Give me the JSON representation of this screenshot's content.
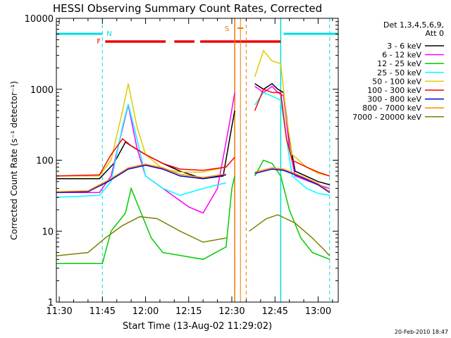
{
  "chart_data": {
    "type": "line",
    "title": "HESSI Observing Summary Count Rates, Corrected",
    "xlabel": "Start Time (13-Aug-02 11:29:02)",
    "ylabel": "Corrected Count Rate (s⁻¹ detector⁻¹)",
    "y_scale": "log",
    "ylim": [
      1,
      10000
    ],
    "xlim": [
      "11:29",
      "13:07"
    ],
    "x_ticks": [
      "11:30",
      "11:45",
      "12:00",
      "12:15",
      "12:30",
      "12:45",
      "13:00"
    ],
    "y_ticks": [
      "1",
      "10",
      "100",
      "1000",
      "10000"
    ],
    "legend_header": [
      "Det 1,3,4,5,6,9,",
      "Att 0"
    ],
    "legend_placement": "right",
    "footer_date": "20-Feb-2010 18:47",
    "flag_labels": {
      "night": "N",
      "flare": "F",
      "saa": "S"
    },
    "series": [
      {
        "name": "3 - 6 keV",
        "color": "#000000",
        "points": [
          [
            "11:29",
            55
          ],
          [
            "11:44",
            55
          ],
          [
            "11:49",
            90
          ],
          [
            "11:53",
            180
          ],
          [
            "11:56",
            150
          ],
          [
            "12:00",
            120
          ],
          [
            "12:06",
            90
          ],
          [
            "12:12",
            70
          ],
          [
            "12:20",
            55
          ],
          [
            "12:27",
            60
          ],
          [
            "12:30",
            300
          ],
          [
            "12:31",
            500
          ]
        ],
        "points2": [
          [
            "12:38",
            1200
          ],
          [
            "12:41",
            1000
          ],
          [
            "12:44",
            1200
          ],
          [
            "12:46",
            1000
          ],
          [
            "12:48",
            900
          ],
          [
            "12:50",
            200
          ],
          [
            "12:52",
            70
          ],
          [
            "13:00",
            50
          ],
          [
            "13:04",
            45
          ]
        ]
      },
      {
        "name": "6 - 12 keV",
        "color": "#ff00ff",
        "points": [
          [
            "11:29",
            35
          ],
          [
            "11:44",
            35
          ],
          [
            "11:48",
            60
          ],
          [
            "11:54",
            600
          ],
          [
            "11:57",
            150
          ],
          [
            "12:00",
            60
          ],
          [
            "12:08",
            35
          ],
          [
            "12:15",
            22
          ],
          [
            "12:20",
            18
          ],
          [
            "12:25",
            40
          ],
          [
            "12:29",
            300
          ],
          [
            "12:31",
            900
          ]
        ],
        "points2": [
          [
            "12:38",
            1100
          ],
          [
            "12:41",
            900
          ],
          [
            "12:44",
            1100
          ],
          [
            "12:46",
            900
          ],
          [
            "12:48",
            800
          ],
          [
            "12:50",
            150
          ],
          [
            "12:52",
            60
          ],
          [
            "13:00",
            45
          ],
          [
            "13:04",
            40
          ]
        ]
      },
      {
        "name": "12 - 25 keV",
        "color": "#00cc00",
        "points": [
          [
            "11:29",
            3.5
          ],
          [
            "11:45",
            3.5
          ],
          [
            "11:48",
            10
          ],
          [
            "11:53",
            18
          ],
          [
            "11:55",
            40
          ],
          [
            "11:58",
            20
          ],
          [
            "12:02",
            8
          ],
          [
            "12:06",
            5
          ],
          [
            "12:20",
            4
          ],
          [
            "12:28",
            6
          ],
          [
            "12:30",
            40
          ],
          [
            "12:31",
            60
          ]
        ],
        "points2": [
          [
            "12:38",
            60
          ],
          [
            "12:41",
            100
          ],
          [
            "12:44",
            90
          ],
          [
            "12:47",
            60
          ],
          [
            "12:50",
            20
          ],
          [
            "12:54",
            8
          ],
          [
            "12:58",
            5
          ],
          [
            "13:04",
            4
          ]
        ]
      },
      {
        "name": "25 - 50 keV",
        "color": "#00ffff",
        "points": [
          [
            "11:29",
            30
          ],
          [
            "11:44",
            32
          ],
          [
            "11:48",
            50
          ],
          [
            "11:52",
            300
          ],
          [
            "11:54",
            620
          ],
          [
            "11:57",
            200
          ],
          [
            "12:00",
            60
          ],
          [
            "12:06",
            40
          ],
          [
            "12:12",
            32
          ],
          [
            "12:20",
            40
          ],
          [
            "12:28",
            48
          ]
        ],
        "points2": [
          [
            "12:38",
            600
          ],
          [
            "12:41",
            900
          ],
          [
            "12:44",
            800
          ],
          [
            "12:47",
            700
          ],
          [
            "12:49",
            200
          ],
          [
            "12:51",
            60
          ],
          [
            "12:56",
            40
          ],
          [
            "13:00",
            34
          ],
          [
            "13:04",
            32
          ]
        ]
      },
      {
        "name": "50 - 100 keV",
        "color": "#ddcc00",
        "points": [
          [
            "11:29",
            60
          ],
          [
            "11:44",
            60
          ],
          [
            "11:48",
            100
          ],
          [
            "11:52",
            500
          ],
          [
            "11:54",
            1200
          ],
          [
            "11:57",
            300
          ],
          [
            "12:00",
            120
          ],
          [
            "12:06",
            75
          ],
          [
            "12:12",
            68
          ],
          [
            "12:20",
            68
          ],
          [
            "12:28",
            80
          ]
        ],
        "points2": [
          [
            "12:38",
            1500
          ],
          [
            "12:41",
            3500
          ],
          [
            "12:44",
            2500
          ],
          [
            "12:47",
            2300
          ],
          [
            "12:49",
            400
          ],
          [
            "12:51",
            120
          ],
          [
            "12:56",
            80
          ],
          [
            "13:00",
            65
          ],
          [
            "13:04",
            60
          ]
        ]
      },
      {
        "name": "100 - 300 keV",
        "color": "#ff0000",
        "points": [
          [
            "11:29",
            60
          ],
          [
            "11:44",
            62
          ],
          [
            "11:48",
            120
          ],
          [
            "11:52",
            200
          ],
          [
            "11:55",
            160
          ],
          [
            "12:00",
            120
          ],
          [
            "12:06",
            90
          ],
          [
            "12:12",
            75
          ],
          [
            "12:20",
            72
          ],
          [
            "12:28",
            80
          ],
          [
            "12:31",
            110
          ]
        ],
        "points2": [
          [
            "12:38",
            500
          ],
          [
            "12:41",
            1000
          ],
          [
            "12:44",
            900
          ],
          [
            "12:47",
            900
          ],
          [
            "12:49",
            200
          ],
          [
            "12:51",
            100
          ],
          [
            "12:56",
            80
          ],
          [
            "13:00",
            68
          ],
          [
            "13:04",
            60
          ]
        ]
      },
      {
        "name": "300 - 800 keV",
        "color": "#0000cc",
        "points": [
          [
            "11:29",
            35
          ],
          [
            "11:40",
            36
          ],
          [
            "11:47",
            50
          ],
          [
            "11:54",
            75
          ],
          [
            "12:00",
            85
          ],
          [
            "12:06",
            75
          ],
          [
            "12:12",
            60
          ],
          [
            "12:20",
            55
          ],
          [
            "12:28",
            62
          ]
        ],
        "points2": [
          [
            "12:38",
            65
          ],
          [
            "12:44",
            75
          ],
          [
            "12:48",
            72
          ],
          [
            "12:54",
            58
          ],
          [
            "13:00",
            45
          ],
          [
            "13:04",
            35
          ]
        ]
      },
      {
        "name": "800 - 7000 keV",
        "color": "#ff8800",
        "points": [
          [
            "11:29",
            36
          ],
          [
            "11:40",
            37
          ],
          [
            "11:47",
            52
          ],
          [
            "11:54",
            78
          ],
          [
            "12:00",
            88
          ],
          [
            "12:06",
            78
          ],
          [
            "12:12",
            63
          ],
          [
            "12:20",
            57
          ],
          [
            "12:28",
            64
          ]
        ],
        "points2": [
          [
            "12:38",
            68
          ],
          [
            "12:44",
            78
          ],
          [
            "12:48",
            75
          ],
          [
            "12:54",
            60
          ],
          [
            "13:00",
            47
          ],
          [
            "13:04",
            36
          ]
        ]
      },
      {
        "name": "7000 - 20000 keV",
        "color": "#808000",
        "points": [
          [
            "11:29",
            4.5
          ],
          [
            "11:40",
            5
          ],
          [
            "11:46",
            8
          ],
          [
            "11:52",
            12
          ],
          [
            "11:58",
            16
          ],
          [
            "12:04",
            15
          ],
          [
            "12:12",
            10
          ],
          [
            "12:20",
            7
          ],
          [
            "12:28",
            8
          ]
        ],
        "points2": [
          [
            "12:36",
            10
          ],
          [
            "12:42",
            15
          ],
          [
            "12:46",
            17
          ],
          [
            "12:52",
            13
          ],
          [
            "12:58",
            8
          ],
          [
            "13:02",
            5.5
          ],
          [
            "13:04",
            4.5
          ]
        ]
      }
    ]
  }
}
